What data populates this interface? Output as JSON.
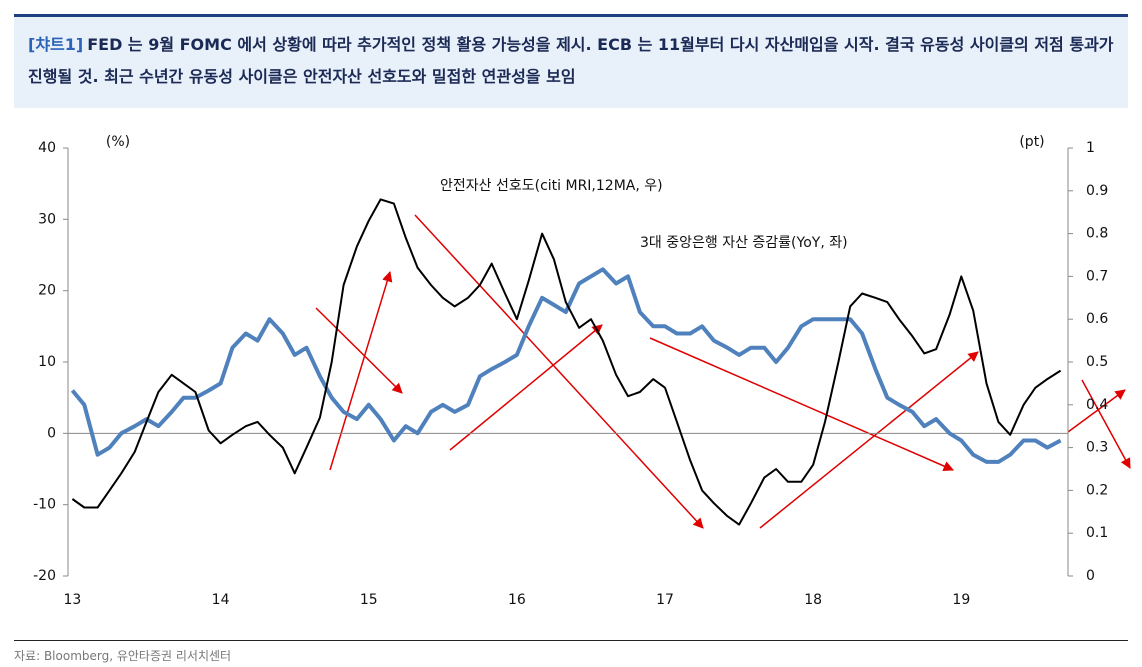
{
  "header": {
    "tag": "[챠트1]",
    "title": "FED 는 9월 FOMC 에서 상황에 따라 추가적인 정책 활용 가능성을 제시. ECB 는 11월부터 다시 자산매입을 시작. 결국 유동성 사이클의 저점 통과가 진행될 것. 최근 수년간 유동성 사이클은 안전자산 선호도와 밀접한 연관성을 보임"
  },
  "source": "자료: Bloomberg, 유안타증권 리서치센터",
  "chart_data": {
    "type": "line",
    "y_unit": "(%)",
    "y2_unit": "(pt)",
    "x": [
      13,
      13.08,
      13.17,
      13.25,
      13.33,
      13.42,
      13.5,
      13.58,
      13.67,
      13.75,
      13.83,
      13.92,
      14,
      14.08,
      14.17,
      14.25,
      14.33,
      14.42,
      14.5,
      14.58,
      14.67,
      14.75,
      14.83,
      14.92,
      15,
      15.08,
      15.17,
      15.25,
      15.33,
      15.42,
      15.5,
      15.58,
      15.67,
      15.75,
      15.83,
      15.92,
      16,
      16.08,
      16.17,
      16.25,
      16.33,
      16.42,
      16.5,
      16.58,
      16.67,
      16.75,
      16.83,
      16.92,
      17,
      17.08,
      17.17,
      17.25,
      17.33,
      17.42,
      17.5,
      17.58,
      17.67,
      17.75,
      17.83,
      17.92,
      18,
      18.08,
      18.17,
      18.25,
      18.33,
      18.42,
      18.5,
      18.58,
      18.67,
      18.75,
      18.83,
      18.92,
      19,
      19.08,
      19.17,
      19.25,
      19.33,
      19.42,
      19.5,
      19.58,
      19.67
    ],
    "series": [
      {
        "name": "3대 중앙은행 자산 증감률(YoY, 좌)",
        "color": "#4f81bd",
        "values": [
          6,
          4,
          -3,
          -2,
          0,
          1,
          2,
          1,
          3,
          5,
          5,
          6,
          7,
          12,
          14,
          13,
          16,
          14,
          11,
          12,
          8,
          5,
          3,
          2,
          4,
          2,
          -1,
          1,
          0,
          3,
          4,
          3,
          4,
          8,
          9,
          10,
          11,
          15,
          19,
          18,
          17,
          21,
          22,
          23,
          21,
          22,
          17,
          15,
          15,
          14,
          14,
          15,
          13,
          12,
          11,
          12,
          12,
          10,
          12,
          15,
          16,
          16,
          16,
          16,
          14,
          9,
          5,
          4,
          3,
          1,
          2,
          0,
          -1,
          -3,
          -4,
          -4,
          -3,
          -1,
          -1,
          -2,
          -1
        ]
      },
      {
        "name": "안전자산 선호도(citi MRI,12MA, 우)",
        "color": "#000000",
        "axis": "y2",
        "values": [
          0.18,
          0.16,
          0.16,
          0.2,
          0.24,
          0.29,
          0.36,
          0.43,
          0.47,
          0.45,
          0.43,
          0.34,
          0.31,
          0.33,
          0.35,
          0.36,
          0.33,
          0.3,
          0.24,
          0.3,
          0.37,
          0.5,
          0.68,
          0.77,
          0.83,
          0.88,
          0.87,
          0.79,
          0.72,
          0.68,
          0.65,
          0.63,
          0.65,
          0.68,
          0.73,
          0.66,
          0.6,
          0.69,
          0.8,
          0.74,
          0.64,
          0.58,
          0.6,
          0.55,
          0.47,
          0.42,
          0.43,
          0.46,
          0.44,
          0.36,
          0.27,
          0.2,
          0.17,
          0.14,
          0.12,
          0.17,
          0.23,
          0.25,
          0.22,
          0.22,
          0.26,
          0.36,
          0.5,
          0.63,
          0.66,
          0.65,
          0.64,
          0.6,
          0.56,
          0.52,
          0.53,
          0.61,
          0.7,
          0.62,
          0.45,
          0.36,
          0.33,
          0.4,
          0.44,
          0.46,
          0.48
        ]
      }
    ],
    "xlim": [
      12.97,
      19.72
    ],
    "xticks": [
      13,
      14,
      15,
      16,
      17,
      18,
      19
    ],
    "ylim": [
      -20,
      40
    ],
    "yticks": [
      -20,
      -10,
      0,
      10,
      20,
      30,
      40
    ],
    "y2lim": [
      0,
      1
    ],
    "y2ticks": [
      0,
      0.1,
      0.2,
      0.3,
      0.4,
      0.5,
      0.6,
      0.7,
      0.8,
      0.9,
      1
    ],
    "grid": false
  }
}
